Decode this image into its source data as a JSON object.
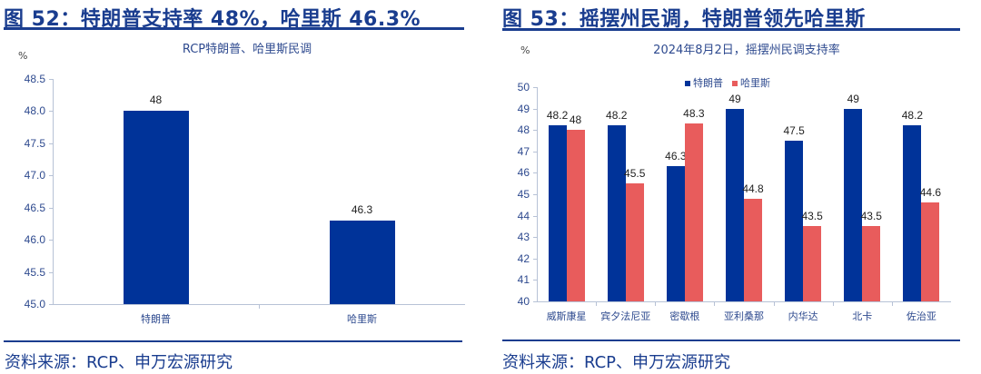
{
  "left": {
    "title": "图 52：特朗普支持率 48%，哈里斯 46.3%",
    "subtitle": "RCP特朗普、哈里斯民调",
    "unit": "%",
    "footer": "资料来源：RCP、申万宏源研究"
  },
  "right": {
    "title": "图 53：摇摆州民调，特朗普领先哈里斯",
    "subtitle": "2024年8月2日，摇摆州民调支持率",
    "unit": "%",
    "legend": [
      "特朗普",
      "哈里斯"
    ],
    "footer": "资料来源：RCP、申万宏源研究"
  },
  "colors": {
    "trump": "#003399",
    "harris": "#e85c5c",
    "title": "#1a3d8f"
  },
  "chart_data": [
    {
      "type": "bar",
      "title": "RCP特朗普、哈里斯民调",
      "categories": [
        "特朗普",
        "哈里斯"
      ],
      "values": [
        48,
        46.3
      ],
      "data_labels": [
        "48",
        "46.3"
      ],
      "xlabel": "",
      "ylabel": "%",
      "ylim": [
        45.0,
        48.5
      ],
      "yticks": [
        "45.0",
        "45.5",
        "46.0",
        "46.5",
        "47.0",
        "47.5",
        "48.0",
        "48.5"
      ],
      "grid": false,
      "legend": null
    },
    {
      "type": "bar",
      "title": "2024年8月2日，摇摆州民调支持率",
      "categories": [
        "威斯康星",
        "宾夕法尼亚",
        "密歇根",
        "亚利桑那",
        "内华达",
        "北卡",
        "佐治亚"
      ],
      "series": [
        {
          "name": "特朗普",
          "values": [
            48.2,
            48.2,
            46.3,
            49,
            47.5,
            49,
            48.2
          ],
          "labels": [
            "48.2",
            "48.2",
            "46.3",
            "49",
            "47.5",
            "49",
            "48.2"
          ]
        },
        {
          "name": "哈里斯",
          "values": [
            48,
            45.5,
            48.3,
            44.8,
            43.5,
            43.5,
            44.6
          ],
          "labels": [
            "48",
            "45.5",
            "48.3",
            "44.8",
            "43.5",
            "43.5",
            "44.6"
          ]
        }
      ],
      "xlabel": "",
      "ylabel": "%",
      "ylim": [
        40,
        50
      ],
      "yticks": [
        "40",
        "41",
        "42",
        "43",
        "44",
        "45",
        "46",
        "47",
        "48",
        "49",
        "50"
      ],
      "grid": false,
      "legend_position": "top"
    }
  ]
}
